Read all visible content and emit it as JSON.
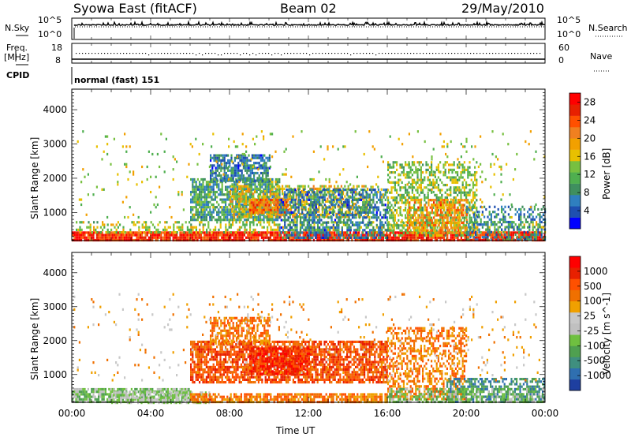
{
  "header": {
    "station": "Syowa East (fitACF)",
    "beam": "Beam 02",
    "date": "29/May/2010"
  },
  "status_panels": {
    "nsky_label": "N.Sky",
    "nsky_ticks": [
      "10^5",
      "10^0"
    ],
    "nsearch_label": "N.Search",
    "nsearch_ticks": [
      "10^5",
      "10^0"
    ],
    "freq_label_line1": "Freq.",
    "freq_label_line2": "[MHz]",
    "freq_ticks": [
      "18",
      "8"
    ],
    "nave_label": "Nave",
    "nave_ticks": [
      "60",
      "0"
    ],
    "cpid_label": "CPID",
    "cpid_value": "normal (fast) 151"
  },
  "colors": {
    "power": [
      "#0000ff",
      "#1e4fb0",
      "#2f7fbf",
      "#3f8f5f",
      "#4faf4f",
      "#77c040",
      "#e8c000",
      "#f2a000",
      "#f08020",
      "#ff5000",
      "#e82000",
      "#ff0000"
    ],
    "velocity": [
      "#1e3fa0",
      "#2f6fb0",
      "#3f8f7f",
      "#4fa050",
      "#6fc040",
      "#c0c0c0",
      "#c8c8c8",
      "#f0a000",
      "#f07000",
      "#ff5000",
      "#e82000",
      "#ff0000"
    ],
    "ground_scatter": "#b0b0b0"
  },
  "chart_data": [
    {
      "type": "heatmap",
      "title": "Power",
      "xlabel": "Time UT",
      "ylabel": "Slant Range [km]",
      "x_ticks": [
        "00:00",
        "04:00",
        "08:00",
        "12:00",
        "16:00",
        "20:00",
        "00:00"
      ],
      "xlim_hours": [
        0,
        24
      ],
      "y_ticks": [
        1000,
        2000,
        3000,
        4000
      ],
      "ylim": [
        180,
        4600
      ],
      "colorbar": {
        "label": "Power [dB]",
        "ticks": [
          4,
          8,
          12,
          16,
          20,
          24,
          28
        ],
        "range": [
          0,
          30
        ]
      },
      "regions": [
        {
          "t0": 0.0,
          "t1": 24.0,
          "r0": 200,
          "r1": 450,
          "level": 27,
          "fill": 0.9
        },
        {
          "t0": 0.2,
          "t1": 24.0,
          "r0": 450,
          "r1": 750,
          "level": 14,
          "fill": 0.35
        },
        {
          "t0": 6.0,
          "t1": 10.5,
          "r0": 800,
          "r1": 2000,
          "level": 9,
          "fill": 0.75
        },
        {
          "t0": 7.0,
          "t1": 10.0,
          "r0": 1900,
          "r1": 2700,
          "level": 6,
          "fill": 0.7
        },
        {
          "t0": 8.0,
          "t1": 15.0,
          "r0": 900,
          "r1": 1800,
          "level": 17,
          "fill": 0.55
        },
        {
          "t0": 9.0,
          "t1": 11.0,
          "r0": 1000,
          "r1": 1400,
          "level": 23,
          "fill": 0.85
        },
        {
          "t0": 10.5,
          "t1": 16.0,
          "r0": 300,
          "r1": 1700,
          "level": 6,
          "fill": 0.55
        },
        {
          "t0": 16.0,
          "t1": 20.5,
          "r0": 300,
          "r1": 2500,
          "level": 13,
          "fill": 0.5
        },
        {
          "t0": 17.0,
          "t1": 20.0,
          "r0": 400,
          "r1": 1400,
          "level": 21,
          "fill": 0.55
        },
        {
          "t0": 20.0,
          "t1": 24.0,
          "r0": 200,
          "r1": 1200,
          "level": 7,
          "fill": 0.4
        },
        {
          "t0": 0.0,
          "t1": 24.0,
          "r0": 800,
          "r1": 3400,
          "level": 15,
          "fill": 0.035
        }
      ]
    },
    {
      "type": "heatmap",
      "title": "Velocity",
      "xlabel": "Time UT",
      "ylabel": "Slant Range [km]",
      "x_ticks": [
        "00:00",
        "04:00",
        "08:00",
        "12:00",
        "16:00",
        "20:00",
        "00:00"
      ],
      "xlim_hours": [
        0,
        24
      ],
      "y_ticks": [
        1000,
        2000,
        3000,
        4000
      ],
      "ylim": [
        180,
        4600
      ],
      "colorbar": {
        "label": "Velocity [m s^-1]",
        "ticks": [
          "1000",
          "500",
          "100",
          "25",
          "-25",
          "-100",
          "-500",
          "-1000"
        ]
      },
      "regions": [
        {
          "t0": 0.0,
          "t1": 6.0,
          "r0": 200,
          "r1": 600,
          "level": 4,
          "fill": 0.8
        },
        {
          "t0": 2.0,
          "t1": 7.0,
          "r0": 200,
          "r1": 500,
          "level": 5,
          "fill": 0.6
        },
        {
          "t0": 6.0,
          "t1": 16.0,
          "r0": 200,
          "r1": 450,
          "level": 8,
          "fill": 0.75
        },
        {
          "t0": 6.0,
          "t1": 16.0,
          "r0": 800,
          "r1": 2000,
          "level": 9,
          "fill": 0.75
        },
        {
          "t0": 7.0,
          "t1": 10.0,
          "r0": 1900,
          "r1": 2700,
          "level": 8,
          "fill": 0.6
        },
        {
          "t0": 9.0,
          "t1": 12.0,
          "r0": 1000,
          "r1": 1800,
          "level": 10,
          "fill": 0.85
        },
        {
          "t0": 16.0,
          "t1": 20.0,
          "r0": 300,
          "r1": 2400,
          "level": 8,
          "fill": 0.5
        },
        {
          "t0": 19.0,
          "t1": 24.0,
          "r0": 200,
          "r1": 900,
          "level": 2,
          "fill": 0.55
        },
        {
          "t0": 16.0,
          "t1": 24.0,
          "r0": 200,
          "r1": 600,
          "level": 4,
          "fill": 0.55
        },
        {
          "t0": 0.0,
          "t1": 24.0,
          "r0": 800,
          "r1": 3400,
          "level": 7,
          "fill": 0.035
        }
      ]
    }
  ]
}
